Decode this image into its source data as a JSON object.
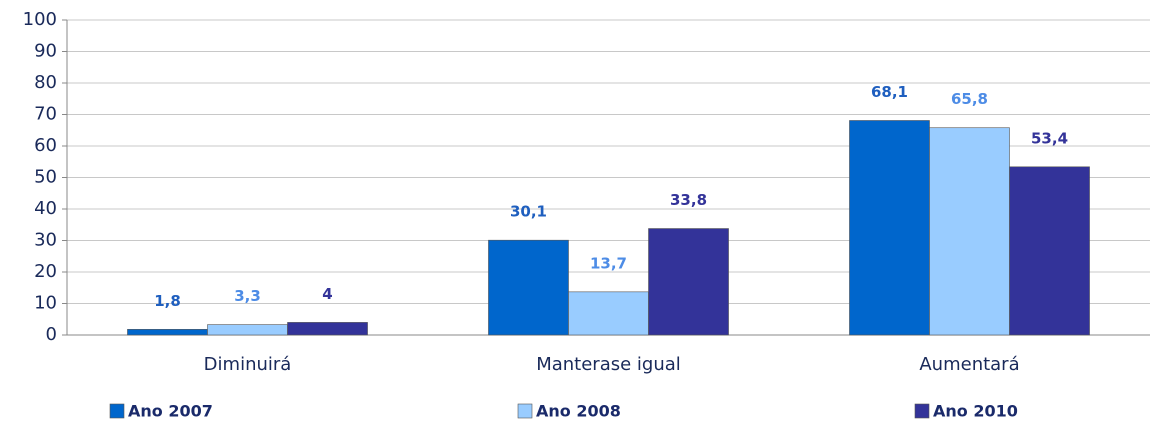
{
  "chart_data": {
    "type": "bar",
    "categories": [
      "Diminuirá",
      "Manterase igual",
      "Aumentará"
    ],
    "series": [
      {
        "name": "Ano 2007",
        "color": "#0066cc",
        "label_color": "#1f5fbf",
        "values": [
          1.8,
          30.1,
          68.1
        ],
        "value_labels": [
          "1,8",
          "30,1",
          "68,1"
        ]
      },
      {
        "name": "Ano 2008",
        "color": "#99ccff",
        "label_color": "#4d8ce6",
        "values": [
          3.3,
          13.7,
          65.8
        ],
        "value_labels": [
          "3,3",
          "13,7",
          "65,8"
        ]
      },
      {
        "name": "Ano 2010",
        "color": "#333399",
        "label_color": "#333399",
        "values": [
          4,
          33.8,
          53.4
        ],
        "value_labels": [
          "4",
          "33,8",
          "53,4"
        ]
      }
    ],
    "ylim": [
      0,
      100
    ],
    "yticks": [
      0,
      10,
      20,
      30,
      40,
      50,
      60,
      70,
      80,
      90,
      100
    ],
    "grid": true,
    "legend": "bottom"
  }
}
